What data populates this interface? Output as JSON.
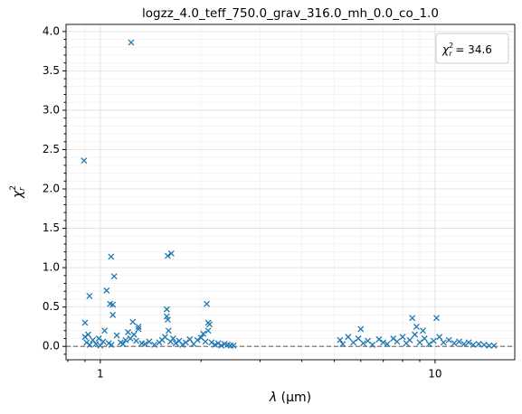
{
  "chart_data": {
    "type": "scatter",
    "title": "logzz_4.0_teff_750.0_grav_316.0_mh_0.0_co_1.0",
    "x_label": {
      "symbol": "λ",
      "text": " (μm)"
    },
    "y_label": {
      "symbol": "χ",
      "superscript": "2",
      "subscript": "r"
    },
    "annotation": {
      "symbol": "χ",
      "superscript": "2",
      "subscript": "r",
      "text": " = 34.6"
    },
    "xscale": "log",
    "xlim": [
      0.79,
      17.3
    ],
    "ylim": [
      -0.17,
      4.09
    ],
    "xticks": [
      1,
      10
    ],
    "xminorticks": [
      0.8,
      0.9,
      2,
      3,
      4,
      5,
      6,
      7,
      8,
      9
    ],
    "yticks": [
      {
        "value": 0,
        "label": "0.0"
      },
      0.5,
      {
        "value": 1,
        "label": "1.0"
      },
      1.5,
      {
        "value": 2,
        "label": "2.0"
      },
      2.5,
      {
        "value": 3,
        "label": "3.0"
      },
      3.5,
      {
        "value": 4,
        "label": "4.0"
      }
    ],
    "yminorticks": [
      -0.1,
      0.1,
      0.2,
      0.3,
      0.4,
      0.6,
      0.7,
      0.8,
      0.9,
      1.1,
      1.2,
      1.3,
      1.4,
      1.6,
      1.7,
      1.8,
      1.9,
      2.1,
      2.2,
      2.3,
      2.4,
      2.6,
      2.7,
      2.8,
      2.9,
      3.1,
      3.2,
      3.3,
      3.4,
      3.6,
      3.7,
      3.8,
      3.9
    ],
    "grid": true,
    "hline": 0,
    "hline_color": "#666666",
    "marker": "x",
    "series": [
      {
        "color": "#1f77b4",
        "x": [
          0.894,
          1.236,
          0.9,
          0.928,
          1.044,
          1.07,
          1.077,
          1.09,
          1.1,
          1.09,
          1.63,
          1.59,
          1.58,
          1.58,
          1.59,
          2.08,
          2.1,
          2.12,
          1.25,
          1.3,
          6.0,
          8.55,
          10.1,
          9.2,
          8.8,
          0.9,
          0.91,
          0.92,
          0.93,
          0.95,
          0.97,
          0.99,
          1.0,
          1.02,
          1.03,
          1.06,
          1.08,
          1.12,
          1.15,
          1.17,
          1.19,
          1.21,
          1.23,
          1.26,
          1.28,
          1.3,
          1.33,
          1.36,
          1.4,
          1.45,
          1.5,
          1.53,
          1.56,
          1.6,
          1.62,
          1.65,
          1.68,
          1.72,
          1.76,
          1.8,
          1.85,
          1.9,
          1.95,
          2.0,
          2.03,
          2.06,
          2.1,
          2.15,
          2.2,
          2.25,
          2.3,
          2.35,
          2.4,
          2.45,
          2.5,
          5.2,
          5.3,
          5.5,
          5.7,
          5.9,
          6.1,
          6.3,
          6.5,
          6.8,
          7.0,
          7.2,
          7.5,
          7.7,
          8.0,
          8.2,
          8.4,
          8.7,
          9.0,
          9.3,
          9.6,
          9.9,
          10.3,
          10.6,
          11.0,
          11.4,
          11.8,
          12.2,
          12.6,
          13.0,
          13.5,
          14.0,
          14.5,
          15.0
        ],
        "values": [
          2.36,
          3.86,
          0.3,
          0.64,
          0.71,
          0.54,
          1.14,
          0.4,
          0.89,
          0.53,
          1.18,
          1.15,
          0.47,
          0.38,
          0.34,
          0.54,
          0.3,
          0.28,
          0.31,
          0.25,
          0.22,
          0.36,
          0.36,
          0.2,
          0.25,
          0.12,
          0.05,
          0.15,
          0.02,
          0.08,
          0.03,
          0.1,
          0.01,
          0.06,
          0.2,
          0.04,
          0.02,
          0.14,
          0.05,
          0.03,
          0.08,
          0.18,
          0.1,
          0.15,
          0.07,
          0.22,
          0.04,
          0.03,
          0.06,
          0.02,
          0.05,
          0.08,
          0.12,
          0.2,
          0.06,
          0.1,
          0.04,
          0.07,
          0.02,
          0.05,
          0.09,
          0.03,
          0.08,
          0.11,
          0.16,
          0.06,
          0.2,
          0.05,
          0.02,
          0.04,
          0.01,
          0.03,
          0.02,
          0.01,
          0.01,
          0.08,
          0.03,
          0.12,
          0.05,
          0.1,
          0.04,
          0.07,
          0.02,
          0.09,
          0.05,
          0.03,
          0.1,
          0.06,
          0.12,
          0.04,
          0.08,
          0.15,
          0.05,
          0.1,
          0.03,
          0.07,
          0.12,
          0.05,
          0.08,
          0.04,
          0.06,
          0.03,
          0.05,
          0.02,
          0.03,
          0.02,
          0.01,
          0.01
        ]
      }
    ]
  }
}
